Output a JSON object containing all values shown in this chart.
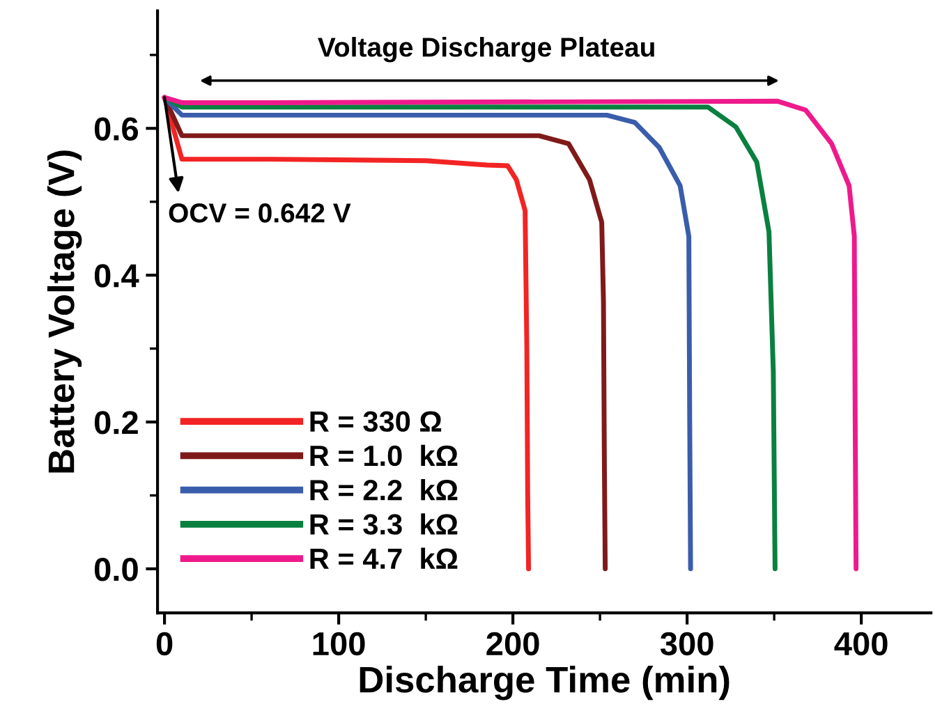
{
  "chart_data": {
    "type": "line",
    "xlabel": "Discharge Time (min)",
    "ylabel": "Battery Voltage (V)",
    "xlim": [
      -4,
      440
    ],
    "ylim": [
      -0.06,
      0.76
    ],
    "xticks": [
      0,
      {
        "value": 50,
        "label": null
      },
      100,
      {
        "value": 150,
        "label": null
      },
      200,
      {
        "value": 250,
        "label": null
      },
      300,
      {
        "value": 350,
        "label": null
      },
      400
    ],
    "yticks": [
      {
        "value": 0,
        "label": "0.0"
      },
      {
        "value": 0.1,
        "label": null
      },
      {
        "value": 0.2,
        "label": "0.2"
      },
      {
        "value": 0.3,
        "label": null
      },
      {
        "value": 0.4,
        "label": "0.4"
      },
      {
        "value": 0.5,
        "label": null
      },
      {
        "value": 0.6,
        "label": "0.6"
      },
      {
        "value": 0.7,
        "label": null
      }
    ],
    "grid": false,
    "legend": "bottom left",
    "marker": "none",
    "line_style": "solid",
    "annotations": [
      {
        "text": "OCV = 0.642 V",
        "x": 0,
        "y": 0.642
      },
      "Voltage Discharge Plateau"
    ],
    "series": [
      {
        "name": "R = 330 Ω",
        "color": "#f22424",
        "x": [
          0,
          10,
          60,
          150,
          185,
          197,
          202,
          207,
          208,
          208.5,
          209
        ],
        "values": [
          0.642,
          0.558,
          0.558,
          0.556,
          0.55,
          0.549,
          0.53,
          0.488,
          0.3,
          0.1,
          0.0
        ]
      },
      {
        "name": "R = 1.0  kΩ",
        "color": "#7f1a1a",
        "x": [
          0,
          10,
          60,
          215,
          232,
          244,
          251,
          252,
          252.5,
          253
        ],
        "values": [
          0.642,
          0.59,
          0.59,
          0.59,
          0.579,
          0.53,
          0.472,
          0.363,
          0.15,
          0.0
        ]
      },
      {
        "name": "R = 2.2  kΩ",
        "color": "#3a5dab",
        "x": [
          0,
          10,
          60,
          254,
          270,
          284,
          296,
          301,
          301.5,
          302
        ],
        "values": [
          0.642,
          0.618,
          0.618,
          0.618,
          0.608,
          0.574,
          0.522,
          0.453,
          0.2,
          0.0
        ]
      },
      {
        "name": "R = 3.3  kΩ",
        "color": "#0a8040",
        "x": [
          0,
          10,
          60,
          312,
          328,
          340,
          347,
          349.5,
          350.5
        ],
        "values": [
          0.642,
          0.629,
          0.629,
          0.629,
          0.602,
          0.554,
          0.459,
          0.268,
          0.0
        ]
      },
      {
        "name": "R = 4.7  kΩ",
        "color": "#ee1a8c",
        "x": [
          0,
          10,
          60,
          352,
          368,
          383,
          393,
          396,
          396.5,
          397
        ],
        "values": [
          0.642,
          0.635,
          0.635,
          0.637,
          0.625,
          0.579,
          0.522,
          0.453,
          0.2,
          0.0
        ]
      }
    ]
  }
}
